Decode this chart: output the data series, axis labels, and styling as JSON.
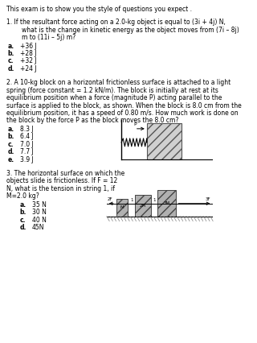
{
  "bg_color": "#ffffff",
  "header": "This exam is to show you the style of questions you expect .",
  "q1_line1": "1. If the resultant force acting on a 2.0-kg object is equal to (3i + 4j) N,",
  "q1_line2": "        what is the change in kinetic energy as the object moves from (7i – 8j)",
  "q1_line3": "        m to (11i – 5j) m?",
  "q1_options": [
    [
      "a.",
      "+36 J"
    ],
    [
      "b.",
      "+28 J"
    ],
    [
      "c.",
      "+32 J"
    ],
    [
      "d.",
      "+24 J"
    ]
  ],
  "q2_lines": [
    "2. A 10-kg block on a horizontal frictionless surface is attached to a light",
    "spring (force constant = 1.2 kN/m). The block is initially at rest at its",
    "equilibrium position when a force (magnitude P) acting parallel to the",
    "surface is applied to the block, as shown. When the block is 8.0 cm from the",
    "equilibrium position, it has a speed of 0.80 m/s. How much work is done on",
    "the block by the force P as the block moves the 8.0 cm?"
  ],
  "q2_options": [
    [
      "a.",
      "8.3 J"
    ],
    [
      "b.",
      "6.4 J"
    ],
    [
      "c.",
      "7.0 J"
    ],
    [
      "d.",
      "7.7 J"
    ],
    [
      "e.",
      "3.9 J"
    ]
  ],
  "q3_lines": [
    "3. The horizontal surface on which the",
    "objects slide is frictionless. If F = 12",
    "N, what is the tension in string 1, if",
    "M=2.0 kg?"
  ],
  "q3_options": [
    [
      "a.",
      "35 N"
    ],
    [
      "b.",
      "30 N"
    ],
    [
      "c.",
      "40 N"
    ],
    [
      "d.",
      "45N"
    ]
  ],
  "fs": 5.5,
  "fs_bold": 5.5
}
